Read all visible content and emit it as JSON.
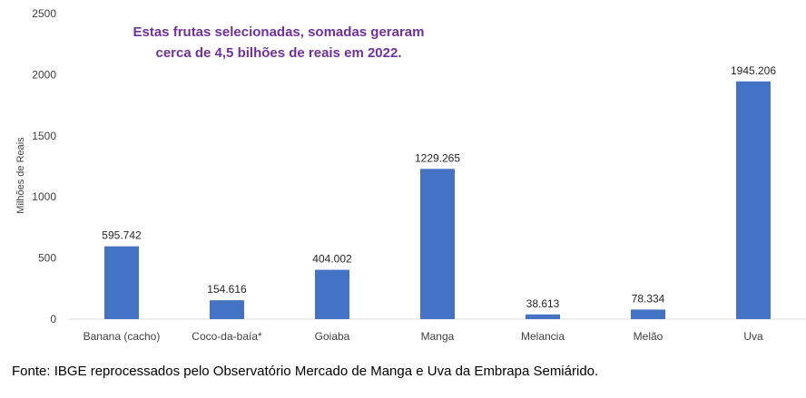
{
  "chart_data": {
    "type": "bar",
    "categories": [
      "Banana (cacho)",
      "Coco-da-baía*",
      "Goiaba",
      "Manga",
      "Melancia",
      "Melão",
      "Uva"
    ],
    "values": [
      595.742,
      154.616,
      404.002,
      1229.265,
      38.613,
      78.334,
      1945.206
    ],
    "data_labels": [
      "595.742",
      "154.616",
      "404.002",
      "1229.265",
      "38.613",
      "78.334",
      "1945.206"
    ],
    "ylabel": "Milhões de Reais",
    "ylim": [
      0,
      2500
    ],
    "yticks": [
      0,
      500,
      1000,
      1500,
      2000,
      2500
    ],
    "grid": false,
    "legend": "none",
    "bar_color": "#4472C4",
    "annotation": {
      "line1": "Estas frutas selecionadas, somadas geraram",
      "line2": "cerca de 4,5 bilhões de reais em 2022.",
      "color": "#7030A0"
    }
  },
  "source": "Fonte: IBGE reprocessados pelo Observatório Mercado de Manga e Uva da Embrapa Semiárido."
}
